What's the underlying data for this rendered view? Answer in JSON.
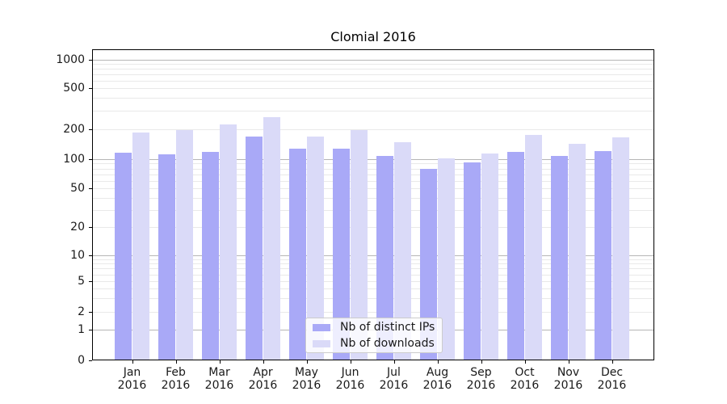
{
  "header": {
    "title": "Clomial 2016"
  },
  "chart_data": {
    "type": "bar",
    "title": "Clomial 2016",
    "categories": [
      "Jan",
      "Feb",
      "Mar",
      "Apr",
      "May",
      "Jun",
      "Jul",
      "Aug",
      "Sep",
      "Oct",
      "Nov",
      "Dec"
    ],
    "year": "2016",
    "series": [
      {
        "name": "Nb of distinct IPs",
        "color": "#a9a9f7",
        "values": [
          117,
          112,
          119,
          170,
          127,
          128,
          108,
          80,
          92,
          119,
          108,
          121
        ]
      },
      {
        "name": "Nb of downloads",
        "color": "#dadaf8",
        "values": [
          184,
          197,
          222,
          260,
          168,
          196,
          147,
          101,
          115,
          177,
          142,
          167
        ]
      }
    ],
    "y_axis": {
      "scale": "symlog",
      "ticks": [
        0,
        1,
        2,
        5,
        10,
        20,
        50,
        100,
        200,
        500,
        1000
      ],
      "range": [
        0,
        1000
      ]
    },
    "x_label": "",
    "y_label": "",
    "grid": true,
    "legend_position": "lower center",
    "colors": {
      "major_grid": "#b6b6b6",
      "minor_grid": "#e9e9e9",
      "axis": "#000000",
      "text": "#1a1a1a",
      "background": "#ffffff"
    }
  }
}
